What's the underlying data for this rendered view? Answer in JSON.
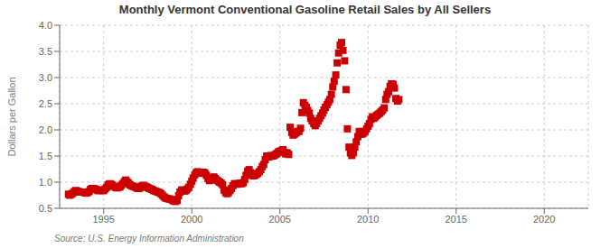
{
  "chart_data": {
    "type": "scatter",
    "title": "Monthly Vermont Conventional Gasoline Retail Sales by All Sellers",
    "ylabel": "Dollars per Gallon",
    "annotations": [
      "Source: U.S. Energy Information Administration"
    ],
    "color": "#cc0000",
    "marker": "square",
    "grid": true,
    "xlim": [
      1992.5,
      2022.5
    ],
    "xticks": [
      1995,
      2000,
      2005,
      2010,
      2015,
      2020
    ],
    "ylim": [
      0.5,
      4.0
    ],
    "yticks": [
      0.5,
      {
        "value": 1.0,
        "label": "1.0"
      },
      1.5,
      {
        "value": 2.0,
        "label": "2.0"
      },
      2.5,
      {
        "value": 3.0,
        "label": "3.0"
      },
      3.5,
      {
        "value": 4.0,
        "label": "4.0"
      }
    ],
    "x": [
      1993.0,
      1993.08,
      1993.17,
      1993.25,
      1993.33,
      1993.42,
      1993.5,
      1993.58,
      1993.67,
      1993.75,
      1993.83,
      1993.92,
      1994.0,
      1994.08,
      1994.17,
      1994.25,
      1994.33,
      1994.42,
      1994.5,
      1994.58,
      1994.67,
      1994.75,
      1994.83,
      1994.92,
      1995.0,
      1995.08,
      1995.17,
      1995.25,
      1995.33,
      1995.42,
      1995.5,
      1995.58,
      1995.67,
      1995.75,
      1995.83,
      1995.92,
      1996.0,
      1996.08,
      1996.17,
      1996.25,
      1996.33,
      1996.42,
      1996.5,
      1996.58,
      1996.67,
      1996.75,
      1996.83,
      1996.92,
      1997.0,
      1997.08,
      1997.17,
      1997.25,
      1997.33,
      1997.42,
      1997.5,
      1997.58,
      1997.67,
      1997.75,
      1997.83,
      1997.92,
      1998.0,
      1998.08,
      1998.17,
      1998.25,
      1998.33,
      1998.42,
      1998.5,
      1998.58,
      1998.67,
      1998.75,
      1998.83,
      1998.92,
      1999.0,
      1999.08,
      1999.17,
      1999.25,
      1999.33,
      1999.42,
      1999.5,
      1999.58,
      1999.67,
      1999.75,
      1999.83,
      1999.92,
      2000.0,
      2000.08,
      2000.17,
      2000.25,
      2000.33,
      2000.42,
      2000.5,
      2000.58,
      2000.67,
      2000.75,
      2000.83,
      2000.92,
      2001.0,
      2001.08,
      2001.17,
      2001.25,
      2001.33,
      2001.42,
      2001.5,
      2001.58,
      2001.67,
      2001.75,
      2001.83,
      2001.92,
      2002.0,
      2002.08,
      2002.17,
      2002.25,
      2002.33,
      2002.42,
      2002.5,
      2002.58,
      2002.67,
      2002.75,
      2002.83,
      2002.92,
      2003.0,
      2003.08,
      2003.17,
      2003.25,
      2003.33,
      2003.42,
      2003.5,
      2003.58,
      2003.67,
      2003.75,
      2003.83,
      2003.92,
      2004.0,
      2004.08,
      2004.17,
      2004.25,
      2004.33,
      2004.42,
      2004.5,
      2004.58,
      2004.67,
      2004.75,
      2004.83,
      2004.92,
      2005.0,
      2005.08,
      2005.17,
      2005.25,
      2005.33,
      2005.42,
      2005.5,
      2005.58,
      2005.67,
      2005.75,
      2005.83,
      2005.92,
      2006.0,
      2006.08,
      2006.17,
      2006.25,
      2006.33,
      2006.42,
      2006.5,
      2006.58,
      2006.67,
      2006.75,
      2006.83,
      2006.92,
      2007.0,
      2007.08,
      2007.17,
      2007.25,
      2007.33,
      2007.42,
      2007.5,
      2007.58,
      2007.67,
      2007.75,
      2007.83,
      2007.92,
      2008.0,
      2008.08,
      2008.17,
      2008.25,
      2008.33,
      2008.42,
      2008.5,
      2008.58,
      2008.67,
      2008.75,
      2008.83,
      2008.92,
      2009.0,
      2009.08,
      2009.17,
      2009.25,
      2009.33,
      2009.42,
      2009.5,
      2009.58,
      2009.67,
      2009.75,
      2009.83,
      2009.92,
      2010.0,
      2010.08,
      2010.17,
      2010.25,
      2010.33,
      2010.42,
      2010.5,
      2010.58,
      2010.67,
      2010.75,
      2010.83,
      2010.92,
      2011.0,
      2011.08,
      2011.17,
      2011.25,
      2011.33,
      2011.42,
      2011.5,
      2011.58,
      2011.67,
      2011.75
    ],
    "values": [
      0.77,
      0.75,
      0.77,
      0.79,
      0.82,
      0.84,
      0.83,
      0.82,
      0.81,
      0.81,
      0.81,
      0.8,
      0.79,
      0.8,
      0.82,
      0.86,
      0.88,
      0.88,
      0.87,
      0.86,
      0.84,
      0.84,
      0.85,
      0.84,
      0.84,
      0.87,
      0.9,
      0.95,
      0.97,
      0.96,
      0.94,
      0.92,
      0.9,
      0.89,
      0.9,
      0.91,
      0.94,
      0.97,
      1.01,
      1.04,
      1.01,
      0.98,
      0.95,
      0.93,
      0.92,
      0.91,
      0.9,
      0.88,
      0.88,
      0.9,
      0.93,
      0.94,
      0.92,
      0.91,
      0.9,
      0.88,
      0.87,
      0.86,
      0.84,
      0.83,
      0.82,
      0.81,
      0.8,
      0.78,
      0.75,
      0.72,
      0.7,
      0.69,
      0.68,
      0.68,
      0.67,
      0.65,
      0.64,
      0.63,
      0.65,
      0.74,
      0.81,
      0.85,
      0.85,
      0.83,
      0.84,
      0.87,
      0.9,
      0.96,
      1.02,
      1.08,
      1.14,
      1.18,
      1.2,
      1.19,
      1.17,
      1.18,
      1.19,
      1.17,
      1.13,
      1.07,
      1.03,
      1.05,
      1.08,
      1.1,
      1.07,
      1.04,
      1.02,
      1.0,
      0.98,
      0.95,
      0.85,
      0.8,
      0.78,
      0.8,
      0.84,
      0.88,
      0.93,
      0.97,
      0.97,
      0.96,
      0.97,
      0.98,
      0.97,
      0.99,
      1.05,
      1.13,
      1.21,
      1.24,
      1.18,
      1.14,
      1.12,
      1.13,
      1.15,
      1.17,
      1.2,
      1.24,
      1.3,
      1.34,
      1.43,
      1.5,
      1.48,
      1.49,
      1.51,
      1.5,
      1.51,
      1.53,
      1.55,
      1.58,
      1.59,
      1.6,
      1.62,
      1.57,
      1.54,
      1.56,
      1.53,
      2.05,
      1.95,
      1.9,
      1.92,
      1.94,
      1.97,
      1.97,
      2.03,
      2.33,
      2.52,
      2.47,
      2.43,
      2.37,
      2.32,
      2.22,
      2.17,
      2.12,
      2.08,
      2.12,
      2.17,
      2.22,
      2.27,
      2.32,
      2.38,
      2.43,
      2.48,
      2.53,
      2.58,
      2.68,
      2.82,
      2.93,
      3.05,
      3.28,
      3.47,
      3.62,
      3.67,
      3.52,
      3.32,
      2.77,
      2.02,
      1.67,
      1.56,
      1.51,
      1.56,
      1.67,
      1.77,
      1.87,
      1.97,
      1.92,
      1.92,
      1.94,
      1.97,
      2.02,
      2.07,
      2.12,
      2.2,
      2.25,
      2.22,
      2.25,
      2.28,
      2.3,
      2.32,
      2.35,
      2.38,
      2.42,
      2.58,
      2.68,
      2.73,
      2.83,
      2.88,
      2.87,
      2.8,
      2.6,
      2.55,
      2.58
    ]
  }
}
